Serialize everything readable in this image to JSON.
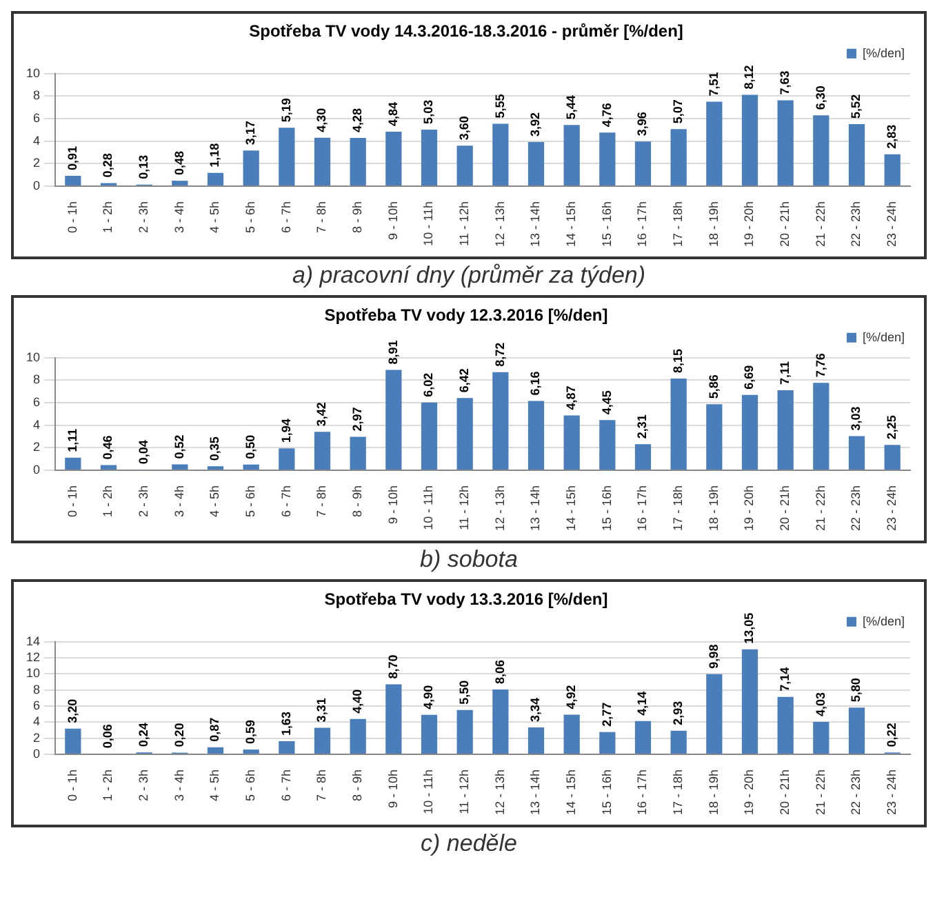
{
  "chart_data": [
    {
      "type": "bar",
      "title": "Spotřeba TV vody 14.3.2016-18.3.2016 - průměr [%/den]",
      "categories": [
        "0 - 1h",
        "1 - 2h",
        "2 - 3h",
        "3 - 4h",
        "4 - 5h",
        "5 - 6h",
        "6 - 7h",
        "7 - 8h",
        "8 - 9h",
        "9 - 10h",
        "10 - 11h",
        "11 - 12h",
        "12 - 13h",
        "13 - 14h",
        "14 - 15h",
        "15 - 16h",
        "16 - 17h",
        "17 - 18h",
        "18 - 19h",
        "19 - 20h",
        "20 - 21h",
        "21 - 22h",
        "22 - 23h",
        "23 - 24h"
      ],
      "series": [
        {
          "name": "[%/den]",
          "color": "#4a7ebb",
          "values": [
            0.91,
            0.28,
            0.13,
            0.48,
            1.18,
            3.17,
            5.19,
            4.3,
            4.28,
            4.84,
            5.03,
            3.6,
            5.55,
            3.92,
            5.44,
            4.76,
            3.96,
            5.07,
            7.51,
            8.12,
            7.63,
            6.3,
            5.52,
            2.83
          ],
          "value_labels": [
            "0,91",
            "0,28",
            "0,13",
            "0,48",
            "1,18",
            "3,17",
            "5,19",
            "4,30",
            "4,28",
            "4,84",
            "5,03",
            "3,60",
            "5,55",
            "3,92",
            "5,44",
            "4,76",
            "3,96",
            "5,07",
            "7,51",
            "8,12",
            "7,63",
            "6,30",
            "5,52",
            "2,83"
          ]
        }
      ],
      "ylim": [
        0,
        10
      ],
      "yticks": [
        0,
        2,
        4,
        6,
        8,
        10
      ],
      "grid": "y",
      "legend": "top right",
      "annotations": [
        "a) pracovní dny (průměr za týden)"
      ]
    },
    {
      "type": "bar",
      "title": "Spotřeba TV vody 12.3.2016 [%/den]",
      "categories": [
        "0 - 1h",
        "1 - 2h",
        "2 - 3h",
        "3 - 4h",
        "4 - 5h",
        "5 - 6h",
        "6 - 7h",
        "7 - 8h",
        "8 - 9h",
        "9 - 10h",
        "10 - 11h",
        "11 - 12h",
        "12 - 13h",
        "13 - 14h",
        "14 - 15h",
        "15 - 16h",
        "16 - 17h",
        "17 - 18h",
        "18 - 19h",
        "19 - 20h",
        "20 - 21h",
        "21 - 22h",
        "22 - 23h",
        "23 - 24h"
      ],
      "series": [
        {
          "name": "[%/den]",
          "color": "#4a7ebb",
          "values": [
            1.11,
            0.46,
            0.04,
            0.52,
            0.35,
            0.5,
            1.94,
            3.42,
            2.97,
            8.91,
            6.02,
            6.42,
            8.72,
            6.16,
            4.87,
            4.45,
            2.31,
            8.15,
            5.86,
            6.69,
            7.11,
            7.76,
            3.03,
            2.25
          ],
          "value_labels": [
            "1,11",
            "0,46",
            "0,04",
            "0,52",
            "0,35",
            "0,50",
            "1,94",
            "3,42",
            "2,97",
            "8,91",
            "6,02",
            "6,42",
            "8,72",
            "6,16",
            "4,87",
            "4,45",
            "2,31",
            "8,15",
            "5,86",
            "6,69",
            "7,11",
            "7,76",
            "3,03",
            "2,25"
          ]
        }
      ],
      "ylim": [
        0,
        10
      ],
      "yticks": [
        0,
        2,
        4,
        6,
        8,
        10
      ],
      "grid": "y",
      "legend": "top right",
      "annotations": [
        "b) sobota"
      ]
    },
    {
      "type": "bar",
      "title": "Spotřeba TV vody 13.3.2016 [%/den]",
      "categories": [
        "0 - 1h",
        "1 - 2h",
        "2 - 3h",
        "3 - 4h",
        "4 - 5h",
        "5 - 6h",
        "6 - 7h",
        "7 - 8h",
        "8 - 9h",
        "9 - 10h",
        "10 - 11h",
        "11 - 12h",
        "12 - 13h",
        "13 - 14h",
        "14 - 15h",
        "15 - 16h",
        "16 - 17h",
        "17 - 18h",
        "18 - 19h",
        "19 - 20h",
        "20 - 21h",
        "21 - 22h",
        "22 - 23h",
        "23 - 24h"
      ],
      "series": [
        {
          "name": "[%/den]",
          "color": "#4a7ebb",
          "values": [
            3.2,
            0.06,
            0.24,
            0.2,
            0.87,
            0.59,
            1.63,
            3.31,
            4.4,
            8.7,
            4.9,
            5.5,
            8.06,
            3.34,
            4.92,
            2.77,
            4.14,
            2.93,
            9.98,
            13.05,
            7.14,
            4.03,
            5.8,
            0.22
          ],
          "value_labels": [
            "3,20",
            "0,06",
            "0,24",
            "0,20",
            "0,87",
            "0,59",
            "1,63",
            "3,31",
            "4,40",
            "8,70",
            "4,90",
            "5,50",
            "8,06",
            "3,34",
            "4,92",
            "2,77",
            "4,14",
            "2,93",
            "9,98",
            "13,05",
            "7,14",
            "4,03",
            "5,80",
            "0,22"
          ]
        }
      ],
      "ylim": [
        0,
        14
      ],
      "yticks": [
        0,
        2,
        4,
        6,
        8,
        10,
        12,
        14
      ],
      "grid": "y",
      "legend": "top right",
      "annotations": [
        "c) neděle"
      ]
    }
  ]
}
